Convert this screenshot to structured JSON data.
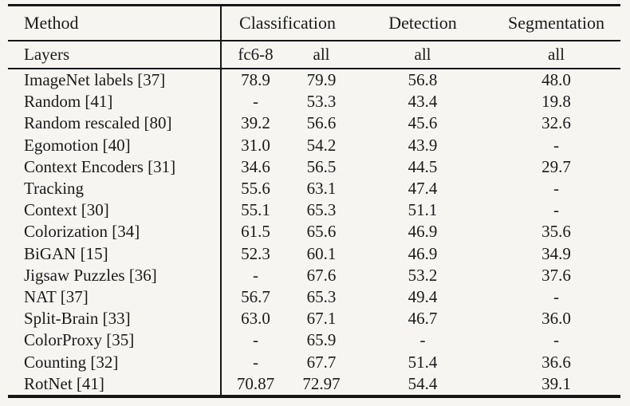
{
  "page": {
    "background_color": "#f6f5f2",
    "text_color": "#1a1a1a",
    "rule_color": "#161616"
  },
  "table": {
    "header": {
      "method_label": "Method",
      "group_labels": [
        "Classification",
        "Detection",
        "Segmentation"
      ],
      "layers_label": "Layers",
      "layer_values": [
        "fc6-8",
        "all",
        "all",
        "all"
      ]
    }
  },
  "chart_data": {
    "type": "table",
    "columns": [
      "Method",
      "Classification fc6-8",
      "Classification all",
      "Detection all",
      "Segmentation all"
    ],
    "rows": [
      {
        "method": "ImageNet labels [37]",
        "values": [
          "78.9",
          "79.9",
          "56.8",
          "48.0"
        ]
      },
      {
        "method": "Random [41]",
        "values": [
          "-",
          "53.3",
          "43.4",
          "19.8"
        ]
      },
      {
        "method": "Random rescaled [80]",
        "values": [
          "39.2",
          "56.6",
          "45.6",
          "32.6"
        ]
      },
      {
        "method": "Egomotion [40]",
        "values": [
          "31.0",
          "54.2",
          "43.9",
          "-"
        ]
      },
      {
        "method": "Context Encoders [31]",
        "values": [
          "34.6",
          "56.5",
          "44.5",
          "29.7"
        ]
      },
      {
        "method": "Tracking",
        "values": [
          "55.6",
          "63.1",
          "47.4",
          "-"
        ]
      },
      {
        "method": "Context [30]",
        "values": [
          "55.1",
          "65.3",
          "51.1",
          "-"
        ]
      },
      {
        "method": "Colorization [34]",
        "values": [
          "61.5",
          "65.6",
          "46.9",
          "35.6"
        ]
      },
      {
        "method": "BiGAN [15]",
        "values": [
          "52.3",
          "60.1",
          "46.9",
          "34.9"
        ]
      },
      {
        "method": "Jigsaw Puzzles [36]",
        "values": [
          "-",
          "67.6",
          "53.2",
          "37.6"
        ]
      },
      {
        "method": "NAT [37]",
        "values": [
          "56.7",
          "65.3",
          "49.4",
          "-"
        ]
      },
      {
        "method": "Split-Brain [33]",
        "values": [
          "63.0",
          "67.1",
          "46.7",
          "36.0"
        ]
      },
      {
        "method": "ColorProxy [35]",
        "values": [
          "-",
          "65.9",
          "-",
          "-"
        ]
      },
      {
        "method": "Counting [32]",
        "values": [
          "-",
          "67.7",
          "51.4",
          "36.6"
        ]
      },
      {
        "method": "RotNet [41]",
        "values": [
          "70.87",
          "72.97",
          "54.4",
          "39.1"
        ]
      }
    ]
  }
}
